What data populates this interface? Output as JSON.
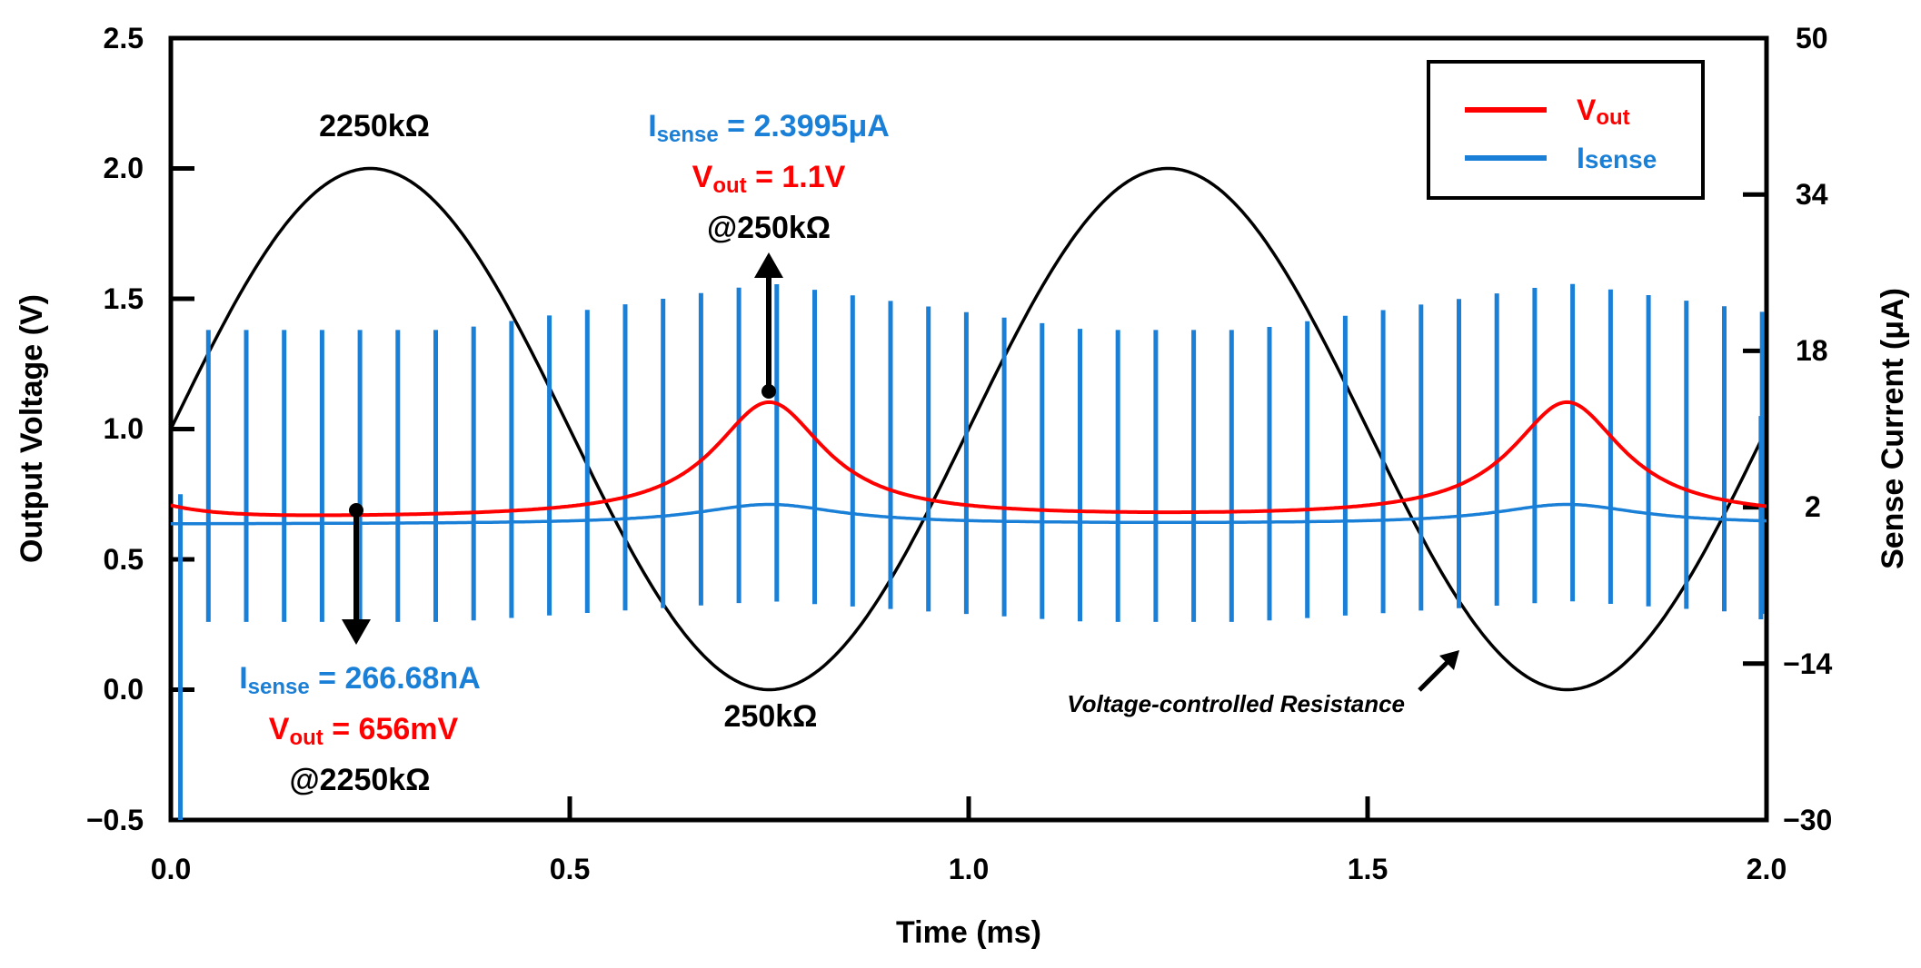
{
  "chart_data": {
    "type": "line",
    "title": "",
    "xlabel": "Time (ms)",
    "ylabel": "Output Voltage (V)",
    "y2label": "Sense Current (μA)",
    "xlim": [
      0.0,
      2.0
    ],
    "ylim": [
      -0.5,
      2.5
    ],
    "y2lim": [
      -30,
      50
    ],
    "xticks": [
      "0.0",
      "0.5",
      "1.0",
      "1.5",
      "2.0"
    ],
    "yticks": [
      "−0.5",
      "0.0",
      "0.5",
      "1.0",
      "1.5",
      "2.0",
      "2.5"
    ],
    "y2ticks": [
      "−30",
      "−14",
      "2",
      "18",
      "34",
      "50"
    ],
    "series": [
      {
        "name": "Vout",
        "color": "#ff0000",
        "axis": "left",
        "description": "baseline 0.656 V, peaks 1.1 V at 0.75 ms and 1.75 ms",
        "baseline": 0.656,
        "peak": 1.1,
        "peak_times": [
          0.75,
          1.75
        ]
      },
      {
        "name": "Isense",
        "color": "#1a7fd6",
        "axis": "left",
        "description": "pulse train every ~0.05 ms",
        "baseline": 0.635,
        "pulse_period": 0.0475,
        "pulse_top_low": 1.38,
        "pulse_top_high": 1.56,
        "pulse_bottom_low": 0.26,
        "pulse_bottom_high": 0.34
      },
      {
        "name": "Voltage-controlled Resistance",
        "color": "#000000",
        "axis": "left",
        "description": "sine control, 1 ms period, 0 to 2 V",
        "offset": 1.0,
        "amplitude": 1.0,
        "period": 1.0
      }
    ],
    "legend": {
      "position": "top-right",
      "items": [
        {
          "main": "V",
          "sub": "out",
          "color": "#ff0000"
        },
        {
          "main": "I",
          "sub": "sense",
          "color": "#1a7fd6"
        }
      ]
    },
    "annotations": {
      "r_high_top": "2250kΩ",
      "r_low_bottom": "250kΩ",
      "vcr_label": "Voltage-controlled Resistance",
      "peak_isense_main": "I",
      "peak_isense_sub": "sense",
      "peak_isense_value": " = 2.3995μA",
      "peak_vout_main": "V",
      "peak_vout_sub": "out",
      "peak_vout_value": " = 1.1V",
      "peak_at": "@250kΩ",
      "base_isense_main": "I",
      "base_isense_sub": "sense",
      "base_isense_value": " = 266.68nA",
      "base_vout_main": "V",
      "base_vout_sub": "out",
      "base_vout_value": " = 656mV",
      "base_at": "@2250kΩ"
    }
  }
}
